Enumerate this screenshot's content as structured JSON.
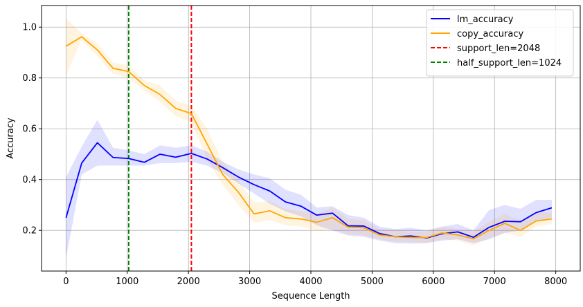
{
  "chart_data": {
    "type": "line",
    "title": "",
    "xlabel": "Sequence Length",
    "ylabel": "Accuracy",
    "xlim": [
      -400,
      8400
    ],
    "ylim": [
      0.04,
      1.085
    ],
    "xticks": [
      0,
      1000,
      2000,
      3000,
      4000,
      5000,
      6000,
      7000,
      8000
    ],
    "yticks": [
      0.2,
      0.4,
      0.6,
      0.8,
      1.0
    ],
    "xtick_labels": [
      "0",
      "1000",
      "2000",
      "3000",
      "4000",
      "5000",
      "6000",
      "7000",
      "8000"
    ],
    "ytick_labels": [
      "0.2",
      "0.4",
      "0.6",
      "0.8",
      "1.0"
    ],
    "grid": true,
    "legend_position": "top-right",
    "x": [
      0,
      256,
      512,
      768,
      1024,
      1280,
      1536,
      1792,
      2048,
      2304,
      2560,
      2816,
      3072,
      3328,
      3584,
      3840,
      4096,
      4352,
      4608,
      4864,
      5120,
      5376,
      5632,
      5888,
      6144,
      6400,
      6656,
      6912,
      7168,
      7424,
      7680,
      7936
    ],
    "series": [
      {
        "name": "lm_accuracy",
        "color": "#0000ff",
        "style": "solid",
        "values": [
          0.25,
          0.465,
          0.545,
          0.487,
          0.483,
          0.468,
          0.5,
          0.488,
          0.503,
          0.481,
          0.447,
          0.41,
          0.38,
          0.355,
          0.312,
          0.295,
          0.26,
          0.268,
          0.218,
          0.217,
          0.188,
          0.175,
          0.178,
          0.17,
          0.187,
          0.194,
          0.173,
          0.212,
          0.236,
          0.234,
          0.27,
          0.289
        ],
        "lower": [
          0.09,
          0.42,
          0.455,
          0.455,
          0.455,
          0.455,
          0.465,
          0.465,
          0.47,
          0.455,
          0.425,
          0.385,
          0.345,
          0.305,
          0.275,
          0.255,
          0.22,
          0.2,
          0.18,
          0.175,
          0.16,
          0.15,
          0.148,
          0.15,
          0.16,
          0.165,
          0.15,
          0.165,
          0.19,
          0.2,
          0.235,
          0.25
        ],
        "upper": [
          0.41,
          0.53,
          0.635,
          0.525,
          0.515,
          0.5,
          0.535,
          0.525,
          0.535,
          0.51,
          0.47,
          0.44,
          0.42,
          0.405,
          0.36,
          0.34,
          0.29,
          0.295,
          0.26,
          0.25,
          0.215,
          0.205,
          0.21,
          0.2,
          0.215,
          0.225,
          0.2,
          0.28,
          0.3,
          0.285,
          0.32,
          0.32
        ]
      },
      {
        "name": "copy_accuracy",
        "color": "#ffa500",
        "style": "solid",
        "values": [
          0.925,
          0.962,
          0.91,
          0.838,
          0.825,
          0.77,
          0.735,
          0.68,
          0.66,
          0.54,
          0.42,
          0.35,
          0.265,
          0.277,
          0.25,
          0.245,
          0.232,
          0.25,
          0.213,
          0.21,
          0.182,
          0.175,
          0.172,
          0.172,
          0.19,
          0.182,
          0.167,
          0.2,
          0.228,
          0.2,
          0.237,
          0.245
        ],
        "lower": [
          0.81,
          0.95,
          0.885,
          0.815,
          0.8,
          0.75,
          0.705,
          0.65,
          0.625,
          0.48,
          0.38,
          0.3,
          0.23,
          0.24,
          0.22,
          0.215,
          0.2,
          0.205,
          0.185,
          0.18,
          0.165,
          0.155,
          0.155,
          0.15,
          0.165,
          0.16,
          0.14,
          0.17,
          0.19,
          0.175,
          0.215,
          0.225
        ],
        "upper": [
          1.035,
          0.975,
          0.935,
          0.86,
          0.85,
          0.79,
          0.77,
          0.71,
          0.69,
          0.6,
          0.47,
          0.395,
          0.31,
          0.315,
          0.285,
          0.275,
          0.265,
          0.29,
          0.245,
          0.24,
          0.205,
          0.2,
          0.195,
          0.195,
          0.215,
          0.205,
          0.195,
          0.235,
          0.265,
          0.235,
          0.27,
          0.27
        ]
      }
    ],
    "vlines": [
      {
        "name": "support_len=2048",
        "x": 2048,
        "color": "#ff0000",
        "style": "dashed"
      },
      {
        "name": "half_support_len=1024",
        "x": 1024,
        "color": "#008000",
        "style": "dashed"
      }
    ]
  }
}
